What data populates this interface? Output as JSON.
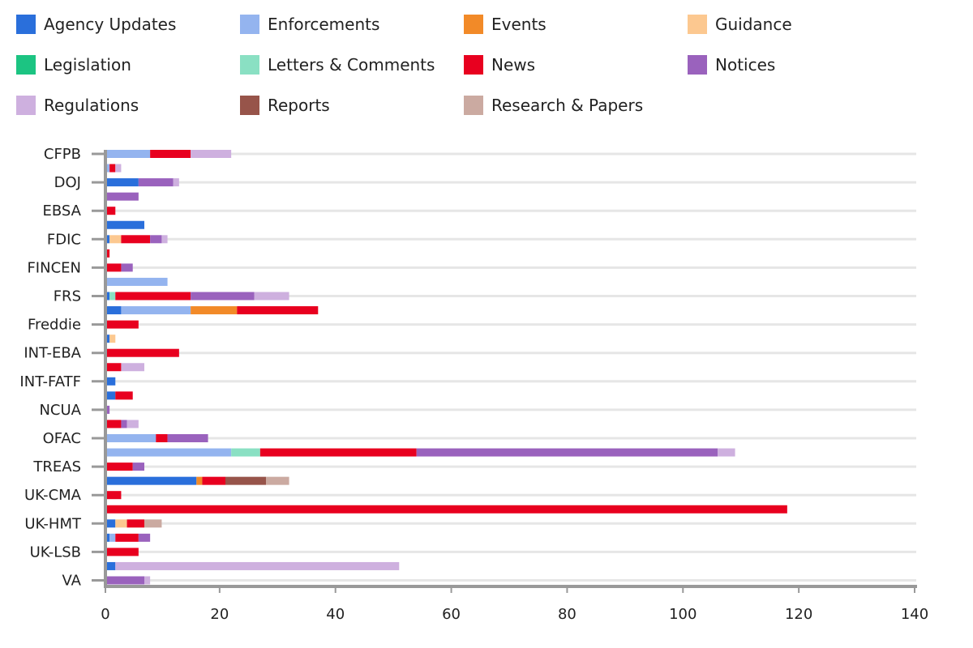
{
  "chart_data": {
    "type": "bar",
    "orientation": "horizontal",
    "stacked": true,
    "legend_position": "top",
    "grid": true,
    "xlim": [
      0,
      140
    ],
    "xticks": [
      0,
      20,
      40,
      60,
      80,
      100,
      120,
      140
    ],
    "categories": [
      "CFPB",
      "",
      "DOJ",
      "",
      "EBSA",
      "",
      "FDIC",
      "",
      "FINCEN",
      "",
      "FRS",
      "",
      "Freddie",
      "",
      "INT-EBA",
      "",
      "INT-FATF",
      "",
      "NCUA",
      "",
      "OFAC",
      "",
      "TREAS",
      "",
      "UK-CMA",
      "",
      "UK-HMT",
      "",
      "UK-LSB",
      "",
      "VA"
    ],
    "series": [
      {
        "name": "Agency Updates",
        "color": "#2a6fdb",
        "values": [
          0,
          0,
          6,
          0,
          0,
          7,
          1,
          0,
          0,
          0,
          1,
          3,
          0,
          1,
          0,
          0,
          2,
          2,
          0,
          0,
          0,
          0,
          0,
          16,
          0,
          0,
          2,
          1,
          0,
          2,
          0
        ]
      },
      {
        "name": "Enforcements",
        "color": "#94b4ef",
        "values": [
          8,
          1,
          0,
          0,
          0,
          0,
          0,
          0,
          0,
          11,
          0,
          12,
          0,
          0,
          0,
          0,
          0,
          0,
          0,
          0,
          9,
          22,
          0,
          0,
          0,
          0,
          0,
          1,
          0,
          0,
          0
        ]
      },
      {
        "name": "Events",
        "color": "#f28a28",
        "values": [
          0,
          0,
          0,
          0,
          0,
          0,
          0,
          0,
          0,
          0,
          0,
          8,
          0,
          0,
          0,
          0,
          0,
          0,
          0,
          0,
          0,
          0,
          0,
          1,
          0,
          0,
          0,
          0,
          0,
          0,
          0
        ]
      },
      {
        "name": "Guidance",
        "color": "#fcc890",
        "values": [
          0,
          0,
          0,
          0,
          0,
          0,
          2,
          0,
          0,
          0,
          0,
          0,
          0,
          1,
          0,
          0,
          0,
          0,
          0,
          0,
          0,
          0,
          0,
          0,
          0,
          0,
          2,
          0,
          0,
          0,
          0
        ]
      },
      {
        "name": "Legislation",
        "color": "#1cc482",
        "values": [
          0,
          0,
          0,
          0,
          0,
          0,
          0,
          0,
          0,
          0,
          0,
          0,
          0,
          0,
          0,
          0,
          0,
          0,
          0,
          0,
          0,
          0,
          0,
          0,
          0,
          0,
          0,
          0,
          0,
          0,
          0
        ]
      },
      {
        "name": "Letters & Comments",
        "color": "#8ae0c3",
        "values": [
          0,
          0,
          0,
          0,
          0,
          0,
          0,
          0,
          0,
          0,
          1,
          0,
          0,
          0,
          0,
          0,
          0,
          0,
          0,
          0,
          0,
          5,
          0,
          0,
          0,
          0,
          0,
          0,
          0,
          0,
          0
        ]
      },
      {
        "name": "News",
        "color": "#e8001f",
        "values": [
          7,
          1,
          0,
          0,
          2,
          0,
          5,
          1,
          3,
          0,
          13,
          14,
          6,
          0,
          13,
          3,
          0,
          3,
          0,
          3,
          2,
          27,
          5,
          4,
          3,
          118,
          3,
          4,
          6,
          0,
          0
        ]
      },
      {
        "name": "Notices",
        "color": "#9a62bd",
        "values": [
          0,
          0,
          6,
          6,
          0,
          0,
          2,
          0,
          2,
          0,
          11,
          0,
          0,
          0,
          0,
          0,
          0,
          0,
          1,
          1,
          7,
          52,
          2,
          0,
          0,
          0,
          0,
          2,
          0,
          0,
          7
        ]
      },
      {
        "name": "Regulations",
        "color": "#ceb0df",
        "values": [
          7,
          1,
          1,
          0,
          0,
          0,
          1,
          0,
          0,
          0,
          6,
          0,
          0,
          0,
          0,
          4,
          0,
          0,
          0,
          2,
          0,
          3,
          0,
          0,
          0,
          0,
          0,
          0,
          0,
          49,
          1
        ]
      },
      {
        "name": "Reports",
        "color": "#97544a",
        "values": [
          0,
          0,
          0,
          0,
          0,
          0,
          0,
          0,
          0,
          0,
          0,
          0,
          0,
          0,
          0,
          0,
          0,
          0,
          0,
          0,
          0,
          0,
          0,
          7,
          0,
          0,
          0,
          0,
          0,
          0,
          0
        ]
      },
      {
        "name": "Research & Papers",
        "color": "#cbaaa1",
        "values": [
          0,
          0,
          0,
          0,
          0,
          0,
          0,
          0,
          0,
          0,
          0,
          0,
          0,
          0,
          0,
          0,
          0,
          0,
          0,
          0,
          0,
          0,
          0,
          4,
          0,
          0,
          3,
          0,
          0,
          0,
          0
        ]
      }
    ]
  }
}
